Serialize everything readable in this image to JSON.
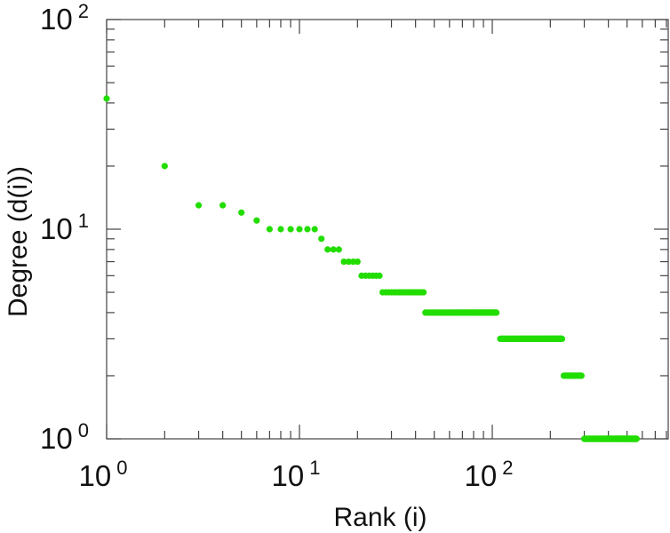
{
  "chart_data": {
    "type": "scatter",
    "title": "",
    "xlabel": "Rank (i)",
    "ylabel": "Degree (d(i))",
    "xscale": "log",
    "yscale": "log",
    "xlim": [
      1,
      1000
    ],
    "ylim": [
      1,
      100
    ],
    "xticks": [
      {
        "base": "10",
        "exp": "0",
        "value": 1
      },
      {
        "base": "10",
        "exp": "1",
        "value": 10
      },
      {
        "base": "10",
        "exp": "2",
        "value": 100
      }
    ],
    "yticks": [
      {
        "base": "10",
        "exp": "0",
        "value": 1
      },
      {
        "base": "10",
        "exp": "1",
        "value": 10
      },
      {
        "base": "10",
        "exp": "2",
        "value": 100
      }
    ],
    "grid": false,
    "marker_color": "#22dd00",
    "series": [
      {
        "runs": [
          {
            "y": 42,
            "from": 1,
            "to": 1
          },
          {
            "y": 20,
            "from": 2,
            "to": 2
          },
          {
            "y": 13,
            "from": 3,
            "to": 4
          },
          {
            "y": 12,
            "from": 5,
            "to": 5
          },
          {
            "y": 11,
            "from": 6,
            "to": 6
          },
          {
            "y": 10,
            "from": 7,
            "to": 12
          },
          {
            "y": 9,
            "from": 13,
            "to": 13
          },
          {
            "y": 8,
            "from": 14,
            "to": 16
          },
          {
            "y": 7,
            "from": 17,
            "to": 20
          },
          {
            "y": 6,
            "from": 21,
            "to": 26
          },
          {
            "y": 5,
            "from": 27,
            "to": 44
          },
          {
            "y": 4,
            "from": 45,
            "to": 105
          },
          {
            "y": 3,
            "from": 110,
            "to": 230
          },
          {
            "y": 2,
            "from": 235,
            "to": 290
          },
          {
            "y": 1,
            "from": 300,
            "to": 560
          }
        ]
      }
    ]
  }
}
